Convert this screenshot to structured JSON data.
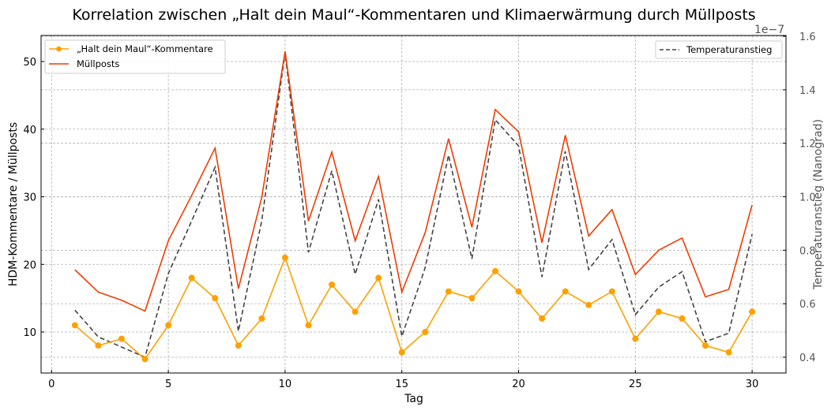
{
  "chart_data": {
    "type": "line",
    "title": "Korrelation zwischen „Halt dein Maul“-Kommentaren und Klimaerwärmung durch Müllposts",
    "xlabel": "Tag",
    "ylabel": "HDM-Kommentare / Müllposts",
    "ylabel_right": "Temperaturanstieg (Nanograd)",
    "right_offset_text": "1e−7",
    "xlim": [
      -0.45,
      31.45
    ],
    "ylim": [
      3.94,
      53.85
    ],
    "ylim_right": [
      0.341,
      1.603
    ],
    "xticks": [
      0,
      5,
      10,
      15,
      20,
      25,
      30
    ],
    "yticks": [
      10,
      20,
      30,
      40,
      50
    ],
    "yticks_right": [
      "0.4",
      "0.6",
      "0.8",
      "1.0",
      "1.2",
      "1.4",
      "1.6"
    ],
    "grid": true,
    "x": [
      1,
      2,
      3,
      4,
      5,
      6,
      7,
      8,
      9,
      10,
      11,
      12,
      13,
      14,
      15,
      16,
      17,
      18,
      19,
      20,
      21,
      22,
      23,
      24,
      25,
      26,
      27,
      28,
      29,
      30
    ],
    "series": [
      {
        "name": "„Halt dein Maul“-Kommentare",
        "axis": "left",
        "color": "#FFA000",
        "marker": "circle",
        "style": "solid",
        "values": [
          11,
          8,
          9,
          6,
          11,
          18,
          15,
          8,
          12,
          21,
          11,
          17,
          13,
          18,
          7,
          10,
          16,
          15,
          19,
          16,
          12,
          16,
          14,
          16,
          9,
          13,
          12,
          8,
          7,
          13
        ]
      },
      {
        "name": "Müllposts",
        "axis": "left",
        "color": "#F03C00",
        "style": "solid",
        "values": [
          19.2,
          15.9,
          14.7,
          13.1,
          23.5,
          30.2,
          37.2,
          16.4,
          29.9,
          51.5,
          26.4,
          36.6,
          23.5,
          33.0,
          15.9,
          24.7,
          38.6,
          25.5,
          42.9,
          39.6,
          23.2,
          39.1,
          24.2,
          28.1,
          18.5,
          22.1,
          23.9,
          15.2,
          16.3,
          28.8
        ]
      },
      {
        "name": "Temperaturanstieg",
        "axis": "right",
        "color": "#444444",
        "style": "dashed",
        "values": [
          0.576,
          0.476,
          0.438,
          0.4,
          0.713,
          0.91,
          1.11,
          0.497,
          0.91,
          1.539,
          0.792,
          1.097,
          0.71,
          0.99,
          0.478,
          0.735,
          1.156,
          0.768,
          1.288,
          1.19,
          0.7,
          1.17,
          0.728,
          0.84,
          0.559,
          0.662,
          0.72,
          0.458,
          0.49,
          0.86
        ]
      }
    ],
    "legend_left": "top-left",
    "legend_right": "top-right"
  }
}
